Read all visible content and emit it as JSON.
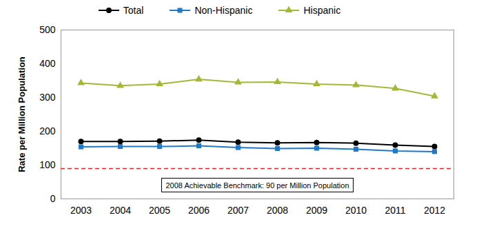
{
  "chart_data": {
    "type": "line",
    "y_label": "Rate per Million Population",
    "categories": [
      "2003",
      "2004",
      "2005",
      "2006",
      "2007",
      "2008",
      "2009",
      "2010",
      "2011",
      "2012"
    ],
    "series": [
      {
        "name": "Total",
        "color": "#000000",
        "marker": "circle",
        "line_style": "solid",
        "values": [
          170,
          170,
          171,
          174,
          168,
          166,
          167,
          165,
          159,
          155
        ]
      },
      {
        "name": "Non-Hispanic",
        "color": "#1f78c8",
        "marker": "square",
        "line_style": "solid",
        "values": [
          154,
          155,
          155,
          157,
          152,
          149,
          150,
          147,
          142,
          140
        ]
      },
      {
        "name": "Hispanic",
        "color": "#a4b836",
        "marker": "triangle",
        "line_style": "solid",
        "values": [
          343,
          335,
          340,
          354,
          345,
          346,
          340,
          337,
          327,
          304
        ]
      }
    ],
    "reference_lines": [
      {
        "value": 90,
        "text": "2008 Achievable Benchmark: 90 per Million Population",
        "color": "#e8262a",
        "line_style": "dashed"
      }
    ],
    "ylim": [
      0,
      500
    ],
    "yticks": [
      0,
      100,
      200,
      300,
      400,
      500
    ],
    "grid": false,
    "legend": "top"
  }
}
